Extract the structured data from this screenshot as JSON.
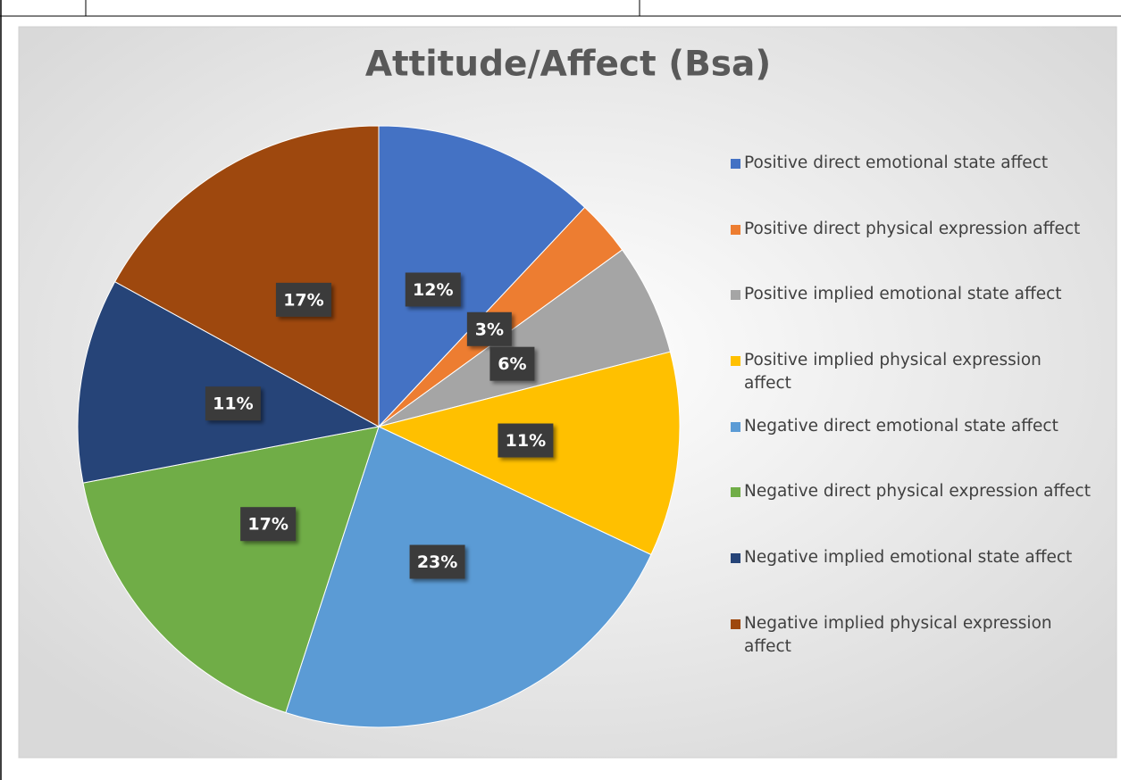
{
  "chart_data": {
    "type": "pie",
    "title": "Attitude/Affect (Bsa)",
    "categories": [
      "Positive direct emotional state affect",
      "Positive direct physical expression affect",
      "Positive implied emotional state affect",
      "Positive implied physical expression affect",
      "Negative direct emotional state affect",
      "Negative direct physical expression affect",
      "Negative implied emotional state affect",
      "Negative implied physical expression affect"
    ],
    "values": [
      12,
      3,
      6,
      11,
      23,
      17,
      11,
      17
    ],
    "value_labels": [
      "12%",
      "3%",
      "6%",
      "11%",
      "23%",
      "17%",
      "11%",
      "17%"
    ],
    "colors": [
      "#4472c4",
      "#ed7d31",
      "#a5a5a5",
      "#ffc000",
      "#5b9bd5",
      "#70ad47",
      "#264478",
      "#9e480e"
    ],
    "legend": "right"
  }
}
